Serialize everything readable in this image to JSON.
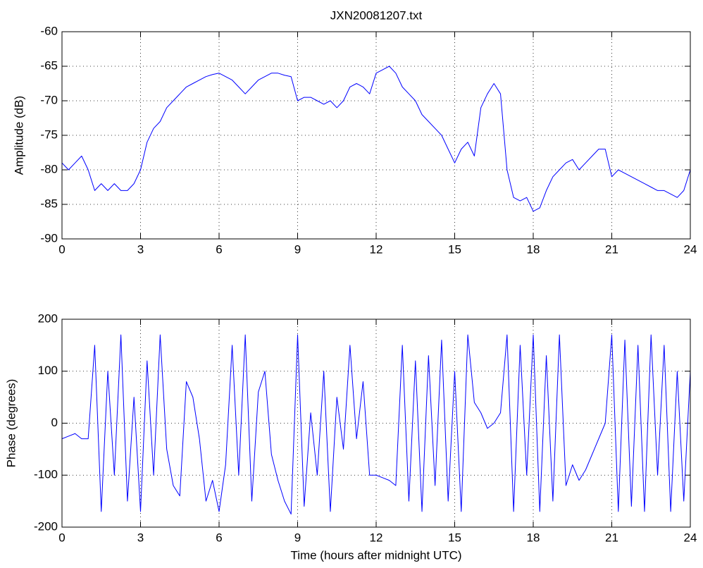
{
  "chart_data": [
    {
      "type": "line",
      "title": "JXN20081207.txt",
      "y_label": "Amplitude (dB)",
      "grid": true,
      "xlim": [
        0,
        24
      ],
      "xticks": [
        0,
        3,
        6,
        9,
        12,
        15,
        18,
        21,
        24
      ],
      "ylim": [
        -90,
        -60
      ],
      "yticks": [
        -90,
        -85,
        -80,
        -75,
        -70,
        -65,
        -60
      ],
      "x": [
        0,
        0.25,
        0.5,
        0.75,
        1,
        1.25,
        1.5,
        1.75,
        2,
        2.25,
        2.5,
        2.75,
        3,
        3.25,
        3.5,
        3.75,
        4,
        4.25,
        4.5,
        4.75,
        5,
        5.25,
        5.5,
        5.75,
        6,
        6.25,
        6.5,
        6.75,
        7,
        7.25,
        7.5,
        7.75,
        8,
        8.25,
        8.5,
        8.75,
        9,
        9.25,
        9.5,
        9.75,
        10,
        10.25,
        10.5,
        10.75,
        11,
        11.25,
        11.5,
        11.75,
        12,
        12.25,
        12.5,
        12.75,
        13,
        13.25,
        13.5,
        13.75,
        14,
        14.25,
        14.5,
        14.75,
        15,
        15.25,
        15.5,
        15.75,
        16,
        16.25,
        16.5,
        16.75,
        17,
        17.25,
        17.5,
        17.75,
        18,
        18.25,
        18.5,
        18.75,
        19,
        19.25,
        19.5,
        19.75,
        20,
        20.25,
        20.5,
        20.75,
        21,
        21.25,
        21.5,
        21.75,
        22,
        22.25,
        22.5,
        22.75,
        23,
        23.25,
        23.5,
        23.75,
        24
      ],
      "series": [
        {
          "color": "#0000ff",
          "values": [
            -79,
            -80,
            -79,
            -78,
            -80,
            -83,
            -82,
            -83,
            -82,
            -83,
            -83,
            -82,
            -80,
            -76,
            -74,
            -73,
            -71,
            -70,
            -69,
            -68,
            -67.5,
            -67,
            -66.5,
            -66.2,
            -66,
            -66.5,
            -67,
            -68,
            -69,
            -68,
            -67,
            -66.5,
            -66,
            -66,
            -66.3,
            -66.5,
            -70,
            -69.5,
            -69.5,
            -70,
            -70.5,
            -70,
            -71,
            -70,
            -68,
            -67.5,
            -68,
            -69,
            -66,
            -65.5,
            -65,
            -66,
            -68,
            -69,
            -70,
            -72,
            -73,
            -74,
            -75,
            -77,
            -79,
            -77,
            -76,
            -78,
            -71,
            -69,
            -67.5,
            -69,
            -80,
            -84,
            -84.5,
            -84,
            -86,
            -85.5,
            -83,
            -81,
            -80,
            -79,
            -78.5,
            -80,
            -79,
            -78,
            -77,
            -77,
            -81,
            -80,
            -80.5,
            -81,
            -81.5,
            -82,
            -82.5,
            -83,
            -83,
            -83.5,
            -84,
            -83,
            -80
          ]
        }
      ]
    },
    {
      "type": "line",
      "x_label": "Time (hours after midnight UTC)",
      "y_label": "Phase (degrees)",
      "grid": true,
      "xlim": [
        0,
        24
      ],
      "xticks": [
        0,
        3,
        6,
        9,
        12,
        15,
        18,
        21,
        24
      ],
      "ylim": [
        -200,
        200
      ],
      "yticks": [
        -200,
        -100,
        0,
        100,
        200
      ],
      "x": [
        0,
        0.25,
        0.5,
        0.75,
        1,
        1.25,
        1.5,
        1.75,
        2,
        2.25,
        2.5,
        2.75,
        3,
        3.25,
        3.5,
        3.75,
        4,
        4.25,
        4.5,
        4.75,
        5,
        5.25,
        5.5,
        5.75,
        6,
        6.25,
        6.5,
        6.75,
        7,
        7.25,
        7.5,
        7.75,
        8,
        8.25,
        8.5,
        8.75,
        9,
        9.25,
        9.5,
        9.75,
        10,
        10.25,
        10.5,
        10.75,
        11,
        11.25,
        11.5,
        11.75,
        12,
        12.25,
        12.5,
        12.75,
        13,
        13.25,
        13.5,
        13.75,
        14,
        14.25,
        14.5,
        14.75,
        15,
        15.25,
        15.5,
        15.75,
        16,
        16.25,
        16.5,
        16.75,
        17,
        17.25,
        17.5,
        17.75,
        18,
        18.25,
        18.5,
        18.75,
        19,
        19.25,
        19.5,
        19.75,
        20,
        20.25,
        20.5,
        20.75,
        21,
        21.25,
        21.5,
        21.75,
        22,
        22.25,
        22.5,
        22.75,
        23,
        23.25,
        23.5,
        23.75,
        24
      ],
      "series": [
        {
          "color": "#0000ff",
          "values": [
            -30,
            -25,
            -20,
            -30,
            -30,
            150,
            -170,
            100,
            -100,
            170,
            -150,
            50,
            -170,
            120,
            -100,
            170,
            -50,
            -120,
            -140,
            80,
            50,
            -30,
            -150,
            -110,
            -170,
            -80,
            150,
            -100,
            170,
            -150,
            60,
            100,
            -60,
            -110,
            -150,
            -175,
            170,
            -160,
            20,
            -100,
            100,
            -170,
            50,
            -50,
            150,
            -30,
            80,
            -100,
            -100,
            -105,
            -110,
            -120,
            150,
            -150,
            120,
            -170,
            130,
            -120,
            160,
            -150,
            100,
            -170,
            170,
            40,
            20,
            -10,
            0,
            20,
            170,
            -170,
            150,
            -100,
            170,
            -170,
            130,
            -150,
            170,
            -120,
            -80,
            -110,
            -90,
            -60,
            -30,
            0,
            170,
            -170,
            160,
            -160,
            150,
            -170,
            170,
            -100,
            150,
            -170,
            100,
            -150,
            100
          ]
        }
      ]
    }
  ]
}
